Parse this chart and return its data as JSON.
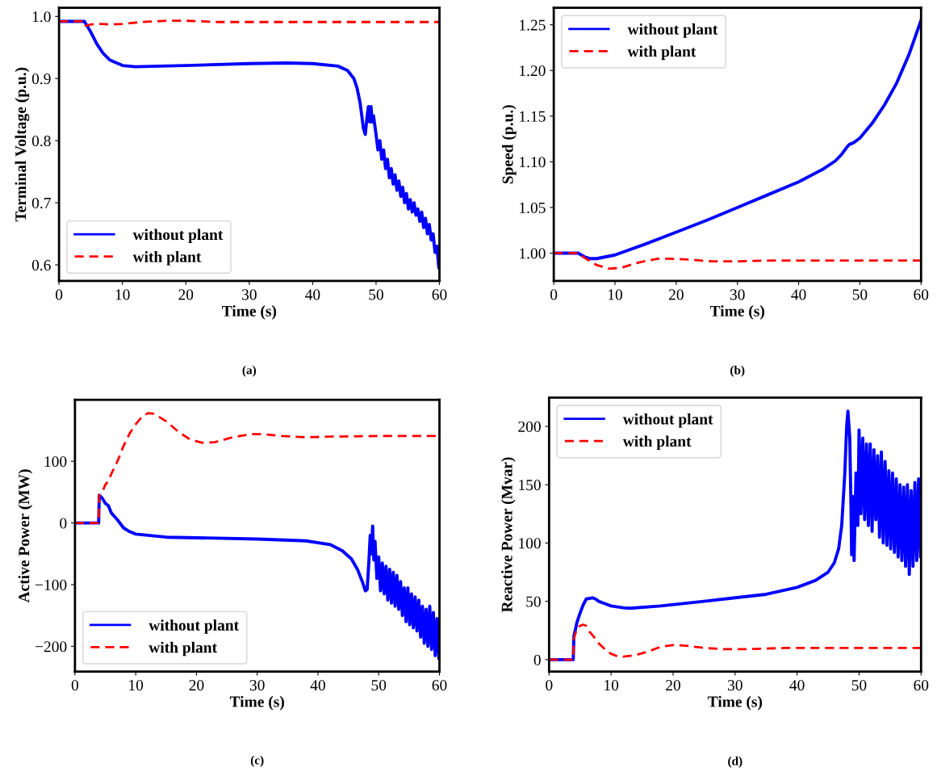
{
  "chart_data": [
    {
      "type": "line",
      "xlabel": "Time (s)",
      "ylabel": "Terminal Voltage (p.u.)",
      "annotations": [
        "(a)"
      ],
      "legend": "lower left",
      "xlim": [
        0,
        60
      ],
      "xticks": [
        0,
        10,
        20,
        30,
        40,
        50,
        60
      ],
      "ylim": [
        0.574,
        1.014
      ],
      "yticks": [
        {
          "value": 0.6,
          "label": "0.6"
        },
        {
          "value": 0.7,
          "label": "0.7"
        },
        {
          "value": 0.8,
          "label": "0.8"
        },
        {
          "value": 0.9,
          "label": "0.9"
        },
        {
          "value": 1.0,
          "label": "1.0"
        }
      ],
      "series": [
        {
          "name": "without plant",
          "color": "#0000ff",
          "line_style": "solid",
          "x": [
            0,
            4,
            5,
            6,
            7,
            8,
            10,
            12,
            20,
            30,
            36,
            40,
            44,
            45.5,
            46.5,
            47,
            47.5,
            48,
            48.3,
            48.6,
            48.8,
            49,
            49.2,
            49.4,
            49.6,
            50,
            50.3,
            50.6,
            50.9,
            51.2,
            51.5,
            51.8,
            52.1,
            52.4,
            52.7,
            53,
            53.3,
            53.6,
            53.9,
            54.2,
            54.5,
            54.8,
            55.1,
            55.4,
            55.7,
            56,
            56.3,
            56.6,
            56.9,
            57.2,
            57.5,
            57.8,
            58.1,
            58.4,
            58.7,
            59,
            59.3,
            59.6,
            59.9,
            60
          ],
          "values": [
            0.992,
            0.992,
            0.975,
            0.955,
            0.94,
            0.93,
            0.921,
            0.919,
            0.921,
            0.924,
            0.925,
            0.924,
            0.92,
            0.913,
            0.9,
            0.885,
            0.86,
            0.82,
            0.81,
            0.84,
            0.855,
            0.83,
            0.855,
            0.83,
            0.84,
            0.81,
            0.785,
            0.8,
            0.77,
            0.785,
            0.755,
            0.77,
            0.74,
            0.755,
            0.73,
            0.745,
            0.72,
            0.735,
            0.71,
            0.725,
            0.7,
            0.715,
            0.69,
            0.705,
            0.685,
            0.7,
            0.68,
            0.69,
            0.67,
            0.685,
            0.66,
            0.675,
            0.65,
            0.665,
            0.64,
            0.65,
            0.62,
            0.63,
            0.595,
            0.61
          ]
        },
        {
          "name": "with plant",
          "color": "#ff0000",
          "line_style": "dashed",
          "x": [
            0,
            4,
            4.2,
            5,
            6,
            8,
            10,
            13,
            17,
            20,
            25,
            30,
            60
          ],
          "values": [
            0.992,
            0.992,
            0.985,
            0.987,
            0.988,
            0.987,
            0.988,
            0.991,
            0.993,
            0.993,
            0.991,
            0.991,
            0.991
          ]
        }
      ]
    },
    {
      "type": "line",
      "xlabel": "Time (s)",
      "ylabel": "Speed (p.u.)",
      "annotations": [
        "(b)"
      ],
      "legend": "upper left",
      "xlim": [
        0,
        60
      ],
      "xticks": [
        0,
        10,
        20,
        30,
        40,
        50,
        60
      ],
      "ylim": [
        0.9695,
        1.2687
      ],
      "yticks": [
        {
          "value": 1.0,
          "label": "1.00"
        },
        {
          "value": 1.05,
          "label": "1.05"
        },
        {
          "value": 1.1,
          "label": "1.10"
        },
        {
          "value": 1.15,
          "label": "1.15"
        },
        {
          "value": 1.2,
          "label": "1.20"
        },
        {
          "value": 1.25,
          "label": "1.25"
        }
      ],
      "series": [
        {
          "name": "without plant",
          "color": "#0000ff",
          "line_style": "solid",
          "x": [
            0,
            4,
            5,
            6,
            7,
            10,
            15,
            20,
            25,
            30,
            35,
            40,
            44,
            46,
            47,
            48,
            48.3,
            49,
            50,
            52,
            54,
            56,
            58,
            60
          ],
          "values": [
            1.0,
            1.0,
            0.996,
            0.994,
            0.994,
            0.998,
            1.01,
            1.023,
            1.036,
            1.05,
            1.064,
            1.078,
            1.092,
            1.101,
            1.108,
            1.117,
            1.119,
            1.121,
            1.126,
            1.142,
            1.162,
            1.186,
            1.217,
            1.255
          ]
        },
        {
          "name": "with plant",
          "color": "#ff0000",
          "line_style": "dashed",
          "x": [
            0,
            4,
            5,
            7,
            9,
            11,
            14,
            17,
            19,
            22,
            26,
            30,
            35,
            60
          ],
          "values": [
            1.0,
            1.0,
            0.995,
            0.987,
            0.983,
            0.984,
            0.99,
            0.994,
            0.994,
            0.993,
            0.991,
            0.991,
            0.992,
            0.992
          ]
        }
      ]
    },
    {
      "type": "line",
      "xlabel": "Time (s)",
      "ylabel": "Active Power (MW)",
      "annotations": [
        "(c)"
      ],
      "legend": "lower left",
      "xlim": [
        0,
        60
      ],
      "xticks": [
        0,
        10,
        20,
        30,
        40,
        50,
        60
      ],
      "ylim": [
        -241,
        199.5
      ],
      "yticks": [
        {
          "value": -200,
          "label": "−200"
        },
        {
          "value": -100,
          "label": "−100"
        },
        {
          "value": 0,
          "label": "0"
        },
        {
          "value": 100,
          "label": "100"
        }
      ],
      "series": [
        {
          "name": "without plant",
          "color": "#0000ff",
          "line_style": "solid",
          "x": [
            0,
            3.9,
            4,
            4.5,
            5,
            5.5,
            6,
            7,
            8,
            9,
            10,
            15,
            20,
            30,
            38,
            42,
            44,
            45.5,
            46.5,
            47.3,
            47.8,
            48.1,
            48.4,
            48.6,
            48.8,
            49,
            49.2,
            49.4,
            49.7,
            50,
            50.3,
            50.6,
            50.9,
            51.2,
            51.5,
            51.8,
            52.1,
            52.4,
            52.7,
            53,
            53.3,
            53.6,
            53.9,
            54.2,
            54.5,
            54.8,
            55.1,
            55.4,
            55.7,
            56,
            56.3,
            56.6,
            56.9,
            57.2,
            57.5,
            57.8,
            58.1,
            58.4,
            58.7,
            59,
            59.3,
            59.6,
            59.9,
            60
          ],
          "values": [
            0,
            0,
            45,
            40,
            32,
            28,
            16,
            5,
            -8,
            -14,
            -18,
            -23,
            -24,
            -26,
            -29,
            -35,
            -45,
            -58,
            -75,
            -95,
            -110,
            -108,
            -60,
            -20,
            -50,
            -5,
            -60,
            -30,
            -90,
            -55,
            -110,
            -65,
            -115,
            -70,
            -125,
            -75,
            -130,
            -80,
            -135,
            -85,
            -140,
            -95,
            -150,
            -105,
            -160,
            -105,
            -165,
            -115,
            -170,
            -120,
            -175,
            -125,
            -185,
            -135,
            -195,
            -140,
            -200,
            -135,
            -205,
            -145,
            -215,
            -155,
            -220,
            -160
          ]
        },
        {
          "name": "with plant",
          "color": "#ff0000",
          "line_style": "dashed",
          "x": [
            0,
            3.9,
            4,
            4.5,
            5,
            5.5,
            6,
            7,
            8,
            9,
            10,
            11,
            12,
            13,
            15,
            17,
            19,
            21,
            23,
            26,
            29,
            31,
            34,
            38,
            42,
            50,
            60
          ],
          "values": [
            0,
            0,
            45,
            50,
            62,
            68,
            80,
            100,
            125,
            145,
            160,
            172,
            178,
            177,
            165,
            148,
            135,
            130,
            131,
            139,
            144,
            144,
            141,
            139,
            140,
            141,
            141
          ]
        }
      ]
    },
    {
      "type": "line",
      "xlabel": "Time (s)",
      "ylabel": "Reactive Power (Mvar)",
      "annotations": [
        "(d)"
      ],
      "legend": "upper left",
      "xlim": [
        0,
        60
      ],
      "xticks": [
        0,
        10,
        20,
        30,
        40,
        50,
        60
      ],
      "ylim": [
        -10.3,
        224.7
      ],
      "yticks": [
        0,
        50,
        100,
        150,
        200
      ],
      "series": [
        {
          "name": "without plant",
          "color": "#0000ff",
          "line_style": "solid",
          "x": [
            0,
            3.9,
            4,
            4.5,
            5,
            5.5,
            6,
            7,
            7.5,
            8,
            9,
            10,
            12,
            13,
            18,
            25,
            30,
            35,
            40,
            43,
            45,
            46,
            46.7,
            47.2,
            47.7,
            48,
            48.2,
            48.5,
            48.7,
            48.8,
            49,
            49.2,
            49.5,
            49.8,
            50,
            50.3,
            50.6,
            50.9,
            51.2,
            51.5,
            51.8,
            52.1,
            52.4,
            52.7,
            53,
            53.3,
            53.6,
            53.9,
            54.2,
            54.5,
            54.8,
            55.1,
            55.4,
            55.7,
            56,
            56.3,
            56.6,
            56.9,
            57.2,
            57.5,
            57.8,
            58.1,
            58.4,
            58.7,
            59,
            59.3,
            59.6,
            59.9,
            60
          ],
          "values": [
            0,
            0,
            20,
            32,
            40,
            47,
            52,
            53,
            52,
            50,
            48,
            46,
            44.5,
            44,
            46,
            50,
            53,
            56,
            62,
            68,
            75,
            83,
            95,
            115,
            160,
            200,
            213,
            190,
            130,
            90,
            140,
            85,
            160,
            115,
            197,
            125,
            190,
            120,
            185,
            115,
            185,
            110,
            180,
            120,
            175,
            105,
            178,
            100,
            170,
            98,
            162,
            95,
            160,
            92,
            155,
            88,
            150,
            85,
            148,
            80,
            150,
            73,
            145,
            80,
            152,
            85,
            155,
            88,
            150
          ]
        },
        {
          "name": "with plant",
          "color": "#ff0000",
          "line_style": "dashed",
          "x": [
            0,
            3.9,
            4,
            4.5,
            5,
            5.5,
            6,
            6.5,
            7,
            8,
            9,
            10,
            11,
            12,
            14,
            16,
            18,
            20,
            22,
            25,
            28,
            32,
            38,
            45,
            60
          ],
          "values": [
            0,
            0,
            18,
            27,
            29,
            30,
            29,
            24,
            21,
            14,
            9,
            5,
            3,
            2.5,
            4,
            7,
            11,
            12.5,
            12,
            10,
            9,
            9,
            10,
            10,
            10
          ]
        }
      ]
    }
  ]
}
